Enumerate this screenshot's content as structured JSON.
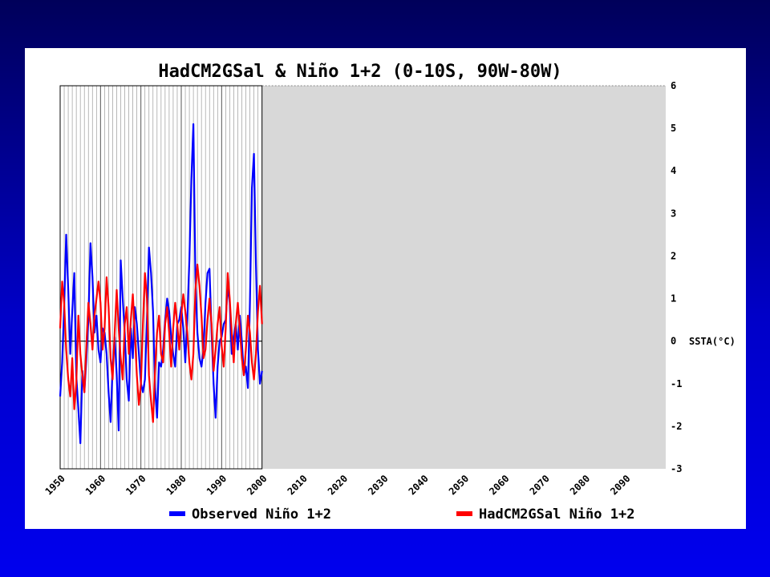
{
  "chart_data": {
    "type": "line",
    "title": "HadCM2GSal & Niño 1+2 (0-10S, 90W-80W)",
    "ylabel": "SSTA(°C)",
    "xlim": [
      1950,
      2100
    ],
    "ylim": [
      -3,
      6
    ],
    "yticks": [
      -3,
      -2,
      -1,
      0,
      1,
      2,
      3,
      4,
      5,
      6
    ],
    "ytick_labels": [
      "-3",
      "-2",
      "-1",
      "0",
      "1",
      "2",
      "3",
      "4",
      "5",
      "6"
    ],
    "xticks": [
      1950,
      1960,
      1970,
      1980,
      1990,
      2000,
      2010,
      2020,
      2030,
      2040,
      2050,
      2060,
      2070,
      2080,
      2090
    ],
    "xtick_labels": [
      "1950",
      "1960",
      "1970",
      "1980",
      "1990",
      "2000",
      "2010",
      "2020",
      "2030",
      "2040",
      "2050",
      "2060",
      "2070",
      "2080",
      "2090"
    ],
    "grid": true,
    "shaded_region": [
      2000,
      2100
    ],
    "legend": "bottom",
    "series": [
      {
        "name": "Observed Niño 1+2",
        "color": "#0000ff",
        "x": [
          1950.0,
          1950.5,
          1951.0,
          1951.5,
          1952.0,
          1952.5,
          1953.0,
          1953.5,
          1954.0,
          1954.5,
          1955.0,
          1955.5,
          1956.0,
          1956.5,
          1957.0,
          1957.5,
          1958.0,
          1958.5,
          1959.0,
          1959.5,
          1960.0,
          1960.5,
          1961.0,
          1961.5,
          1962.0,
          1962.5,
          1963.0,
          1963.5,
          1964.0,
          1964.5,
          1965.0,
          1965.5,
          1966.0,
          1966.5,
          1967.0,
          1967.5,
          1968.0,
          1968.5,
          1969.0,
          1969.5,
          1970.0,
          1970.5,
          1971.0,
          1971.5,
          1972.0,
          1972.5,
          1973.0,
          1973.5,
          1974.0,
          1974.5,
          1975.0,
          1975.5,
          1976.0,
          1976.5,
          1977.0,
          1977.5,
          1978.0,
          1978.5,
          1979.0,
          1979.5,
          1980.0,
          1980.5,
          1981.0,
          1981.5,
          1982.0,
          1982.5,
          1983.0,
          1983.5,
          1984.0,
          1984.5,
          1985.0,
          1985.5,
          1986.0,
          1986.5,
          1987.0,
          1987.5,
          1988.0,
          1988.5,
          1989.0,
          1989.5,
          1990.0,
          1990.5,
          1991.0,
          1991.5,
          1992.0,
          1992.5,
          1993.0,
          1993.5,
          1994.0,
          1994.5,
          1995.0,
          1995.5,
          1996.0,
          1996.5,
          1997.0,
          1997.5,
          1998.0,
          1998.5,
          1999.0,
          1999.5,
          2000.0
        ],
        "y": [
          -1.3,
          -0.5,
          0.8,
          2.5,
          1.2,
          -0.3,
          0.7,
          1.6,
          -0.8,
          -1.6,
          -2.4,
          -0.7,
          -1.2,
          -0.4,
          0.5,
          2.3,
          1.5,
          0.2,
          0.6,
          -0.2,
          -0.5,
          0.3,
          0.2,
          -0.3,
          -1.2,
          -1.9,
          -0.6,
          0.1,
          -0.8,
          -2.1,
          1.9,
          1.0,
          0.2,
          -0.9,
          -1.4,
          0.3,
          -0.4,
          0.8,
          0.4,
          -0.3,
          -1.0,
          -1.2,
          -0.9,
          0.5,
          2.2,
          1.6,
          0.7,
          -1.1,
          -1.8,
          -0.5,
          -0.6,
          -0.2,
          0.5,
          1.0,
          0.7,
          0.1,
          -0.3,
          -0.6,
          0.4,
          0.5,
          0.8,
          0.3,
          -0.5,
          0.5,
          1.9,
          3.8,
          5.1,
          1.5,
          0.2,
          -0.4,
          -0.6,
          -0.2,
          0.9,
          1.6,
          1.7,
          0.2,
          -1.0,
          -1.8,
          -0.6,
          0.0,
          0.1,
          0.4,
          0.5,
          1.3,
          0.9,
          -0.3,
          0.1,
          0.4,
          -0.2,
          0.6,
          0.0,
          -0.8,
          -0.6,
          -1.1,
          0.9,
          3.6,
          4.4,
          1.8,
          -0.2,
          -1.0,
          -0.7
        ]
      },
      {
        "name": "HadCM2GSal Niño 1+2",
        "color": "#ff0000",
        "x": [
          1950.0,
          1950.5,
          1951.0,
          1951.5,
          1952.0,
          1952.5,
          1953.0,
          1953.5,
          1954.0,
          1954.5,
          1955.0,
          1955.5,
          1956.0,
          1956.5,
          1957.0,
          1957.5,
          1958.0,
          1958.5,
          1959.0,
          1959.5,
          1960.0,
          1960.5,
          1961.0,
          1961.5,
          1962.0,
          1962.5,
          1963.0,
          1963.5,
          1964.0,
          1964.5,
          1965.0,
          1965.5,
          1966.0,
          1966.5,
          1967.0,
          1967.5,
          1968.0,
          1968.5,
          1969.0,
          1969.5,
          1970.0,
          1970.5,
          1971.0,
          1971.5,
          1972.0,
          1972.5,
          1973.0,
          1973.5,
          1974.0,
          1974.5,
          1975.0,
          1975.5,
          1976.0,
          1976.5,
          1977.0,
          1977.5,
          1978.0,
          1978.5,
          1979.0,
          1979.5,
          1980.0,
          1980.5,
          1981.0,
          1981.5,
          1982.0,
          1982.5,
          1983.0,
          1983.5,
          1984.0,
          1984.5,
          1985.0,
          1985.5,
          1986.0,
          1986.5,
          1987.0,
          1987.5,
          1988.0,
          1988.5,
          1989.0,
          1989.5,
          1990.0,
          1990.5,
          1991.0,
          1991.5,
          1992.0,
          1992.5,
          1993.0,
          1993.5,
          1994.0,
          1994.5,
          1995.0,
          1995.5,
          1996.0,
          1996.5,
          1997.0,
          1997.5,
          1998.0,
          1998.5,
          1999.0,
          1999.5,
          2000.0
        ],
        "y": [
          0.3,
          1.4,
          0.9,
          -0.2,
          -0.9,
          -1.3,
          -0.4,
          -1.6,
          -1.0,
          0.6,
          -0.3,
          -0.8,
          -1.2,
          -0.1,
          0.9,
          0.4,
          -0.2,
          0.6,
          1.0,
          1.4,
          0.9,
          -0.2,
          0.3,
          1.5,
          0.8,
          -0.4,
          -0.9,
          0.2,
          1.2,
          0.3,
          -0.4,
          -0.9,
          0.4,
          0.8,
          -0.3,
          0.5,
          1.1,
          0.2,
          -0.8,
          -1.5,
          -1.0,
          0.4,
          1.6,
          1.0,
          -0.8,
          -1.4,
          -1.9,
          -0.7,
          0.2,
          0.6,
          -0.3,
          -0.5,
          0.4,
          0.8,
          0.2,
          -0.6,
          0.3,
          0.9,
          0.4,
          -0.2,
          0.6,
          1.1,
          0.7,
          0.2,
          -0.5,
          -0.9,
          -0.3,
          1.2,
          1.8,
          1.3,
          0.6,
          -0.4,
          -0.2,
          0.5,
          1.0,
          0.4,
          -0.7,
          -0.2,
          0.4,
          0.8,
          -0.1,
          -0.6,
          0.3,
          1.6,
          1.0,
          0.2,
          -0.5,
          0.4,
          0.9,
          0.3,
          -0.4,
          -0.8,
          -0.2,
          0.6,
          0.2,
          -0.5,
          -0.9,
          -0.3,
          0.7,
          1.3,
          0.4
        ]
      }
    ]
  }
}
